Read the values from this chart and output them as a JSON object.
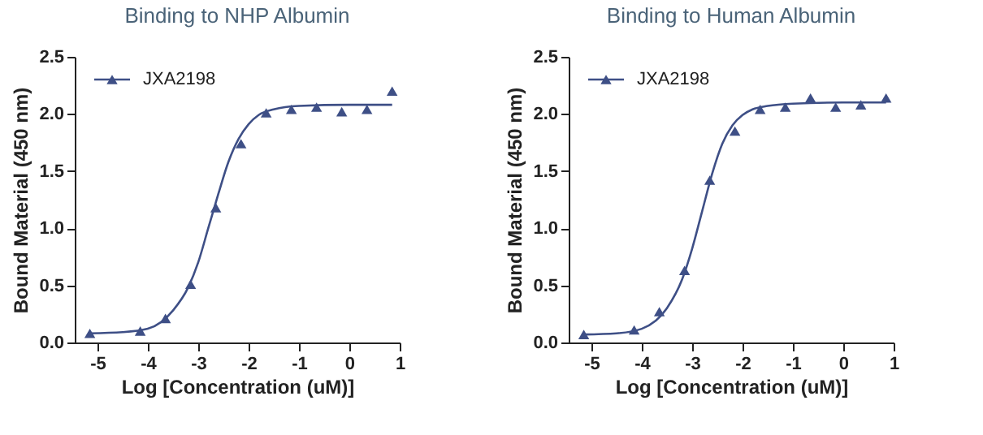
{
  "chart_data": [
    {
      "type": "scatter",
      "title": "Binding to NHP Albumin",
      "xlabel": "Log [Concentration (uM)]",
      "ylabel": "Bound Material (450 nm)",
      "xlim": [
        -5.45,
        1
      ],
      "xticks": [
        -5,
        -4,
        -3,
        -2,
        -1,
        0,
        1
      ],
      "ylim": [
        0,
        2.5
      ],
      "yticks": [
        {
          "value": 0,
          "label": "0.0"
        },
        {
          "value": 0.5,
          "label": "0.5"
        },
        {
          "value": 1,
          "label": "1.0"
        },
        {
          "value": 1.5,
          "label": "1.5"
        },
        {
          "value": 2,
          "label": "2.0"
        },
        {
          "value": 2.5,
          "label": "2.5"
        }
      ],
      "grid": false,
      "legend": "top left",
      "marker": "triangle",
      "series": [
        {
          "type": "line",
          "color": "#3e4f86",
          "marker": "none",
          "x": [
            -5.15,
            -4.5,
            -4,
            -3.5,
            -3.2,
            -3,
            -2.8,
            -2.6,
            -2.4,
            -2.2,
            -2,
            -1.8,
            -1.5,
            -1,
            0,
            0.85
          ],
          "values": [
            0.08,
            0.09,
            0.12,
            0.28,
            0.48,
            0.7,
            1.0,
            1.3,
            1.58,
            1.78,
            1.91,
            1.99,
            2.04,
            2.07,
            2.08,
            2.08
          ]
        },
        {
          "name": "JXA2198",
          "color": "#3e4f86",
          "x": [
            -5.15,
            -4.15,
            -3.65,
            -3.15,
            -2.65,
            -2.15,
            -1.65,
            -1.15,
            -0.65,
            -0.15,
            0.35,
            0.85
          ],
          "values": [
            0.08,
            0.1,
            0.21,
            0.51,
            1.18,
            1.74,
            2.01,
            2.04,
            2.06,
            2.02,
            2.04,
            2.2
          ]
        }
      ]
    },
    {
      "type": "scatter",
      "title": "Binding to Human Albumin",
      "xlabel": "Log [Concentration (uM)]",
      "ylabel": "Bound Material (450 nm)",
      "xlim": [
        -5.45,
        1
      ],
      "xticks": [
        -5,
        -4,
        -3,
        -2,
        -1,
        0,
        1
      ],
      "ylim": [
        0,
        2.5
      ],
      "yticks": [
        {
          "value": 0,
          "label": "0.0"
        },
        {
          "value": 0.5,
          "label": "0.5"
        },
        {
          "value": 1,
          "label": "1.0"
        },
        {
          "value": 1.5,
          "label": "1.5"
        },
        {
          "value": 2,
          "label": "2.0"
        },
        {
          "value": 2.5,
          "label": "2.5"
        }
      ],
      "grid": false,
      "legend": "top left",
      "marker": "triangle",
      "series": [
        {
          "type": "line",
          "color": "#3e4f86",
          "marker": "none",
          "x": [
            -5.15,
            -4.5,
            -4,
            -3.5,
            -3.2,
            -3,
            -2.8,
            -2.6,
            -2.4,
            -2.2,
            -2,
            -1.8,
            -1.5,
            -1,
            0,
            0.85
          ],
          "values": [
            0.07,
            0.08,
            0.12,
            0.3,
            0.55,
            0.82,
            1.15,
            1.48,
            1.74,
            1.9,
            1.99,
            2.04,
            2.07,
            2.09,
            2.1,
            2.1
          ]
        },
        {
          "name": "JXA2198",
          "color": "#3e4f86",
          "x": [
            -5.15,
            -4.15,
            -3.65,
            -3.15,
            -2.65,
            -2.15,
            -1.65,
            -1.15,
            -0.65,
            -0.15,
            0.35,
            0.85
          ],
          "values": [
            0.07,
            0.11,
            0.27,
            0.63,
            1.42,
            1.85,
            2.04,
            2.06,
            2.14,
            2.06,
            2.08,
            2.14
          ]
        }
      ]
    }
  ]
}
